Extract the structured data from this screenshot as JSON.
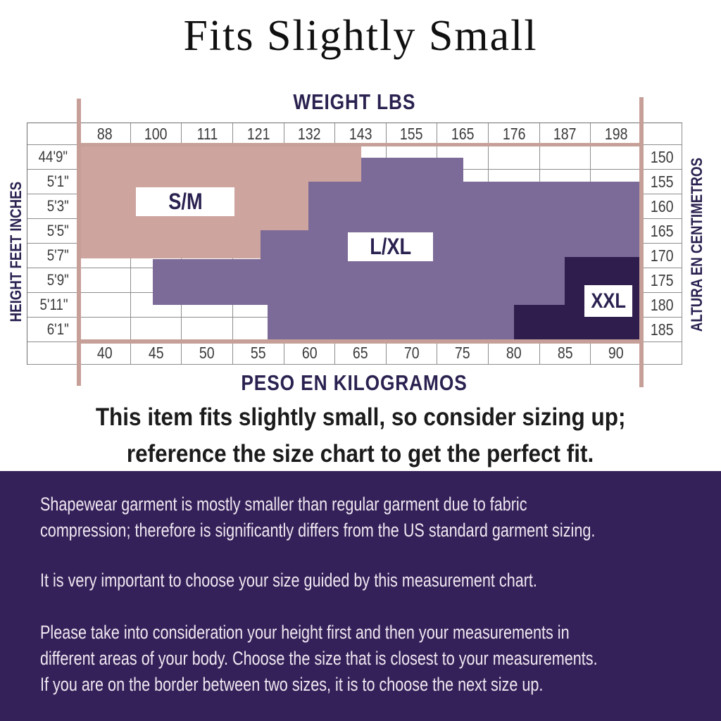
{
  "title": "Fits Slightly Small",
  "chart": {
    "weight_header": "WEIGHT LBS",
    "kg_header": "PESO EN KILOGRAMOS",
    "left_axis_label": "HEIGHT FEET INCHES",
    "right_axis_label": "ALTURA EN CENTIMETROS",
    "weights_lbs": [
      "88",
      "100",
      "111",
      "121",
      "132",
      "143",
      "155",
      "165",
      "176",
      "187",
      "198"
    ],
    "heights_ft_in": [
      "44'9\"",
      "5'1\"",
      "5'3\"",
      "5'5\"",
      "5'7\"",
      "5'9\"",
      "5'11\"",
      "6'1\""
    ],
    "heights_cm": [
      "150",
      "155",
      "160",
      "165",
      "170",
      "175",
      "180",
      "185"
    ],
    "weights_kg": [
      "40",
      "45",
      "50",
      "55",
      "60",
      "65",
      "70",
      "75",
      "80",
      "85",
      "90"
    ]
  },
  "size_labels": {
    "sm": "S/M",
    "lxl": "L/XL",
    "xxl": "XXL"
  },
  "chart_data": {
    "type": "table",
    "title": "Fits Slightly Small",
    "top_axis": {
      "label": "WEIGHT LBS",
      "ticks": [
        88,
        100,
        111,
        121,
        132,
        143,
        155,
        165,
        176,
        187,
        198
      ]
    },
    "bottom_axis": {
      "label": "PESO EN KILOGRAMOS",
      "ticks": [
        40,
        45,
        50,
        55,
        60,
        65,
        70,
        75,
        80,
        85,
        90
      ]
    },
    "left_axis": {
      "label": "HEIGHT FEET INCHES",
      "ticks": [
        "44'9\"",
        "5'1\"",
        "5'3\"",
        "5'5\"",
        "5'7\"",
        "5'9\"",
        "5'11\"",
        "6'1\""
      ]
    },
    "right_axis": {
      "label": "ALTURA EN CENTIMETROS",
      "ticks": [
        150,
        155,
        160,
        165,
        170,
        175,
        180,
        185
      ]
    },
    "regions": [
      {
        "label": "S/M",
        "color": "#cda49e",
        "coverage": "approx 40-55 kg (88-143 lbs), heights 44'9\"-5'7\" (150-170 cm)",
        "points": [
          [
            72,
            33
          ],
          [
            475,
            33
          ],
          [
            475,
            84
          ],
          [
            400,
            84
          ],
          [
            400,
            153
          ],
          [
            332,
            153
          ],
          [
            332,
            193
          ],
          [
            72,
            193
          ]
        ]
      },
      {
        "label": "L/XL",
        "color": "#7c6b98",
        "coverage": "approx 45-90 kg (100-198 lbs), heights 44'9\"-6'1\" (150-185 cm)",
        "points": [
          [
            179,
            194
          ],
          [
            332,
            194
          ],
          [
            332,
            153
          ],
          [
            400,
            153
          ],
          [
            400,
            84
          ],
          [
            475,
            84
          ],
          [
            475,
            50
          ],
          [
            620,
            50
          ],
          [
            620,
            84
          ],
          [
            872,
            84
          ],
          [
            872,
            191
          ],
          [
            764,
            191
          ],
          [
            764,
            259
          ],
          [
            692,
            259
          ],
          [
            692,
            311
          ],
          [
            342,
            311
          ],
          [
            342,
            259
          ],
          [
            179,
            259
          ]
        ]
      },
      {
        "label": "XXL",
        "color": "#2f1d4e",
        "coverage": "approx 75-90 kg (165-198 lbs), heights 5'7\"-6'1\" (170-185 cm)",
        "points": [
          [
            764,
            191
          ],
          [
            872,
            191
          ],
          [
            872,
            311
          ],
          [
            692,
            311
          ],
          [
            692,
            259
          ],
          [
            764,
            259
          ]
        ]
      }
    ],
    "accent_line_color": "#c6a098",
    "header_text_color": "#2b2150"
  },
  "note": {
    "line1": "This item fits slightly small, so consider sizing up;",
    "line2": "reference the size chart to get the perfect fit."
  },
  "footer": {
    "p1": [
      "Shapewear garment is mostly smaller than regular garment due to fabric",
      "compression; therefore is significantly differs from the US standard garment sizing."
    ],
    "p2": [
      "It is very important to choose your size guided by this measurement chart."
    ],
    "p3": [
      "Please take into consideration your height first and then your measurements in",
      "different areas of your body. Choose the size that is closest to your measurements.",
      "If you are on the border between two sizes, it is to choose the next size up."
    ]
  }
}
